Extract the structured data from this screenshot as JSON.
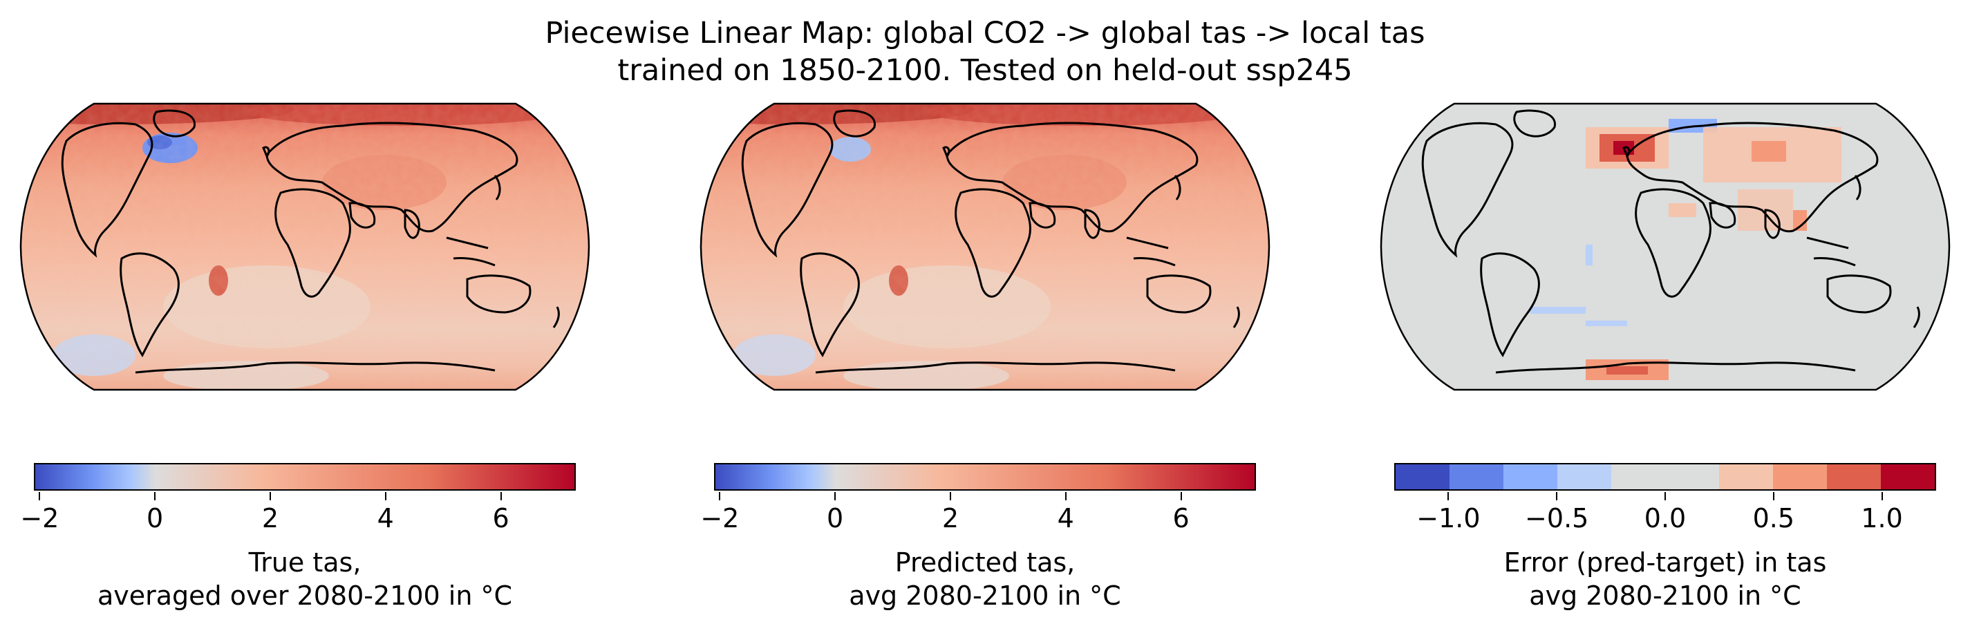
{
  "figure": {
    "title_line1": "Piecewise Linear Map: global CO2 -> global tas -> local tas",
    "title_line2": "trained on 1850-2100. Tested on held-out ssp245"
  },
  "panels": [
    {
      "map": "true-tas",
      "colorbar": {
        "type": "continuous",
        "cmap": "coolwarm",
        "vmin": -2.1,
        "vmax": 7.3,
        "ticks": [
          "−2",
          "0",
          "2",
          "4",
          "6"
        ],
        "tick_values": [
          -2,
          0,
          2,
          4,
          6
        ],
        "label_line1": "True tas,",
        "label_line2": "averaged over 2080-2100 in °C"
      }
    },
    {
      "map": "predicted-tas",
      "colorbar": {
        "type": "continuous",
        "cmap": "coolwarm",
        "vmin": -2.1,
        "vmax": 7.3,
        "ticks": [
          "−2",
          "0",
          "2",
          "4",
          "6"
        ],
        "tick_values": [
          -2,
          0,
          2,
          4,
          6
        ],
        "label_line1": "Predicted tas,",
        "label_line2": "avg 2080-2100 in °C"
      }
    },
    {
      "map": "error-tas",
      "colorbar": {
        "type": "discrete",
        "cmap": "coolwarm",
        "vmin": -1.25,
        "vmax": 1.25,
        "bins": 10,
        "ticks": [
          "−1.0",
          "−0.5",
          "0.0",
          "0.5",
          "1.0"
        ],
        "tick_values": [
          -1.0,
          -0.5,
          0.0,
          0.5,
          1.0
        ],
        "label_line1": "Error (pred-target) in tas",
        "label_line2": "avg 2080-2100 in °C"
      }
    }
  ],
  "colors": {
    "coolwarm_stops": [
      "#3b4cc0",
      "#6f92f3",
      "#aac7fd",
      "#dddcdc",
      "#f7b89c",
      "#e7745b",
      "#b40426"
    ],
    "error_bins": [
      "#3b4cc0",
      "#6282ea",
      "#8db0fe",
      "#b9d0f9",
      "#dcdddd",
      "#dcdddd",
      "#f5c4ac",
      "#f49a7b",
      "#de604d",
      "#b40426"
    ]
  }
}
